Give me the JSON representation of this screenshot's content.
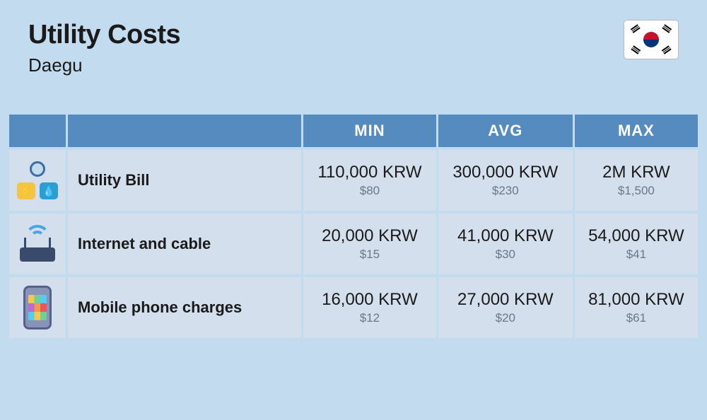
{
  "header": {
    "title": "Utility Costs",
    "subtitle": "Daegu",
    "flag_name": "south-korea"
  },
  "table": {
    "columns": [
      "MIN",
      "AVG",
      "MAX"
    ],
    "header_bg": "#568bbf",
    "header_text_color": "#ffffff",
    "cell_bg": "#d3dfec",
    "krw_color": "#1a1a1a",
    "usd_color": "#6a7785",
    "rows": [
      {
        "icon": "utility-bill-icon",
        "label": "Utility Bill",
        "min_krw": "110,000 KRW",
        "min_usd": "$80",
        "avg_krw": "300,000 KRW",
        "avg_usd": "$230",
        "max_krw": "2M KRW",
        "max_usd": "$1,500"
      },
      {
        "icon": "router-icon",
        "label": "Internet and cable",
        "min_krw": "20,000 KRW",
        "min_usd": "$15",
        "avg_krw": "41,000 KRW",
        "avg_usd": "$30",
        "max_krw": "54,000 KRW",
        "max_usd": "$41"
      },
      {
        "icon": "phone-icon",
        "label": "Mobile phone charges",
        "min_krw": "16,000 KRW",
        "min_usd": "$12",
        "avg_krw": "27,000 KRW",
        "avg_usd": "$20",
        "max_krw": "81,000 KRW",
        "max_usd": "$61"
      }
    ]
  },
  "page_bg": "#c3dbee"
}
